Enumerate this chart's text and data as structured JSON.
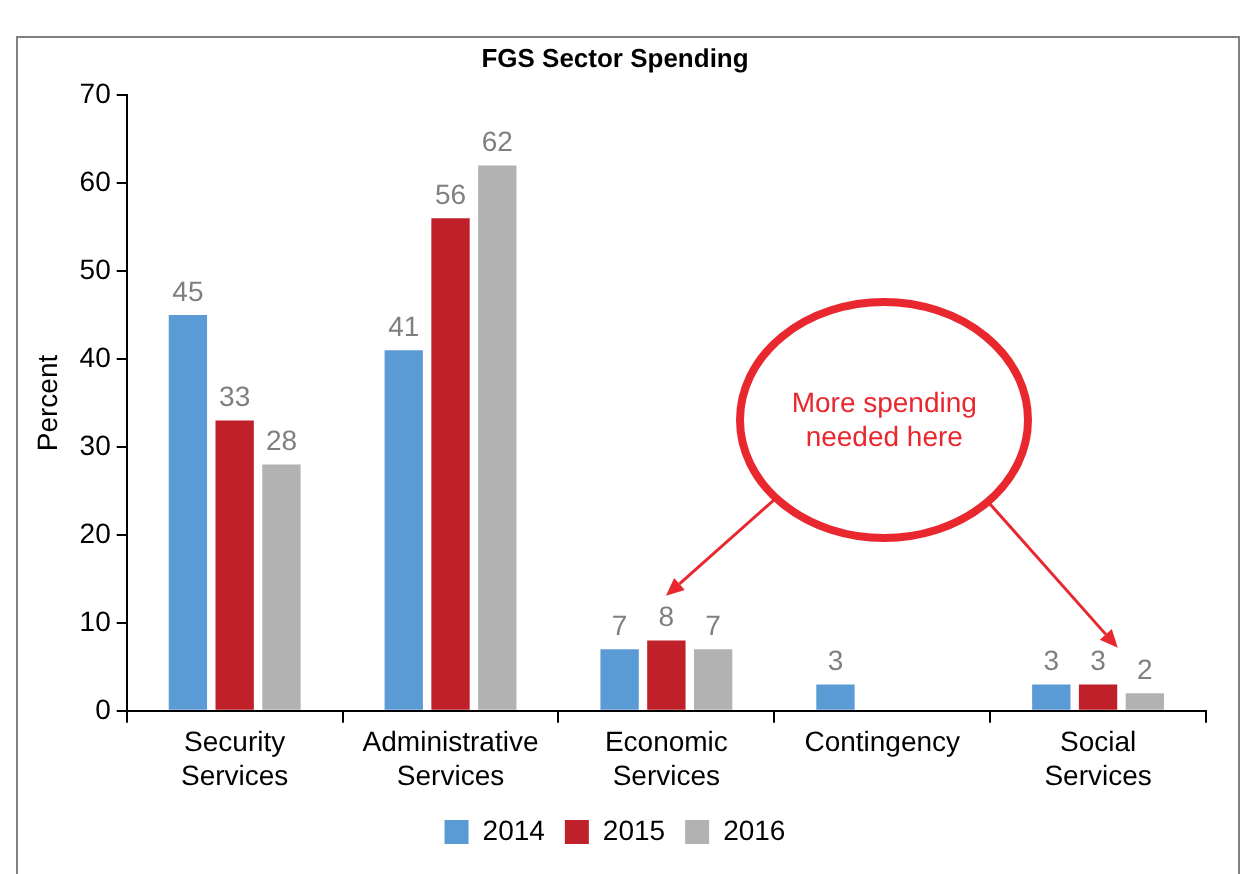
{
  "chart_data": {
    "type": "bar",
    "title": "FGS Sector Spending",
    "ylabel": "Percent",
    "categories": [
      "Security Services",
      "Administrative Services",
      "Economic Services",
      "Contingency",
      "Social Services"
    ],
    "series": [
      {
        "name": "2014",
        "color": "#5b9bd5",
        "values": [
          45,
          41,
          7,
          3,
          3
        ]
      },
      {
        "name": "2015",
        "color": "#c0202a",
        "values": [
          33,
          56,
          8,
          null,
          3
        ]
      },
      {
        "name": "2016",
        "color": "#b2b2b2",
        "values": [
          28,
          62,
          7,
          null,
          2
        ]
      }
    ],
    "ylim": [
      0,
      70
    ],
    "yticks": [
      0,
      10,
      20,
      30,
      40,
      50,
      60,
      70
    ],
    "grid": false,
    "legend": "bottom",
    "data_labels": true,
    "annotations": [
      "More spending needed here"
    ]
  }
}
